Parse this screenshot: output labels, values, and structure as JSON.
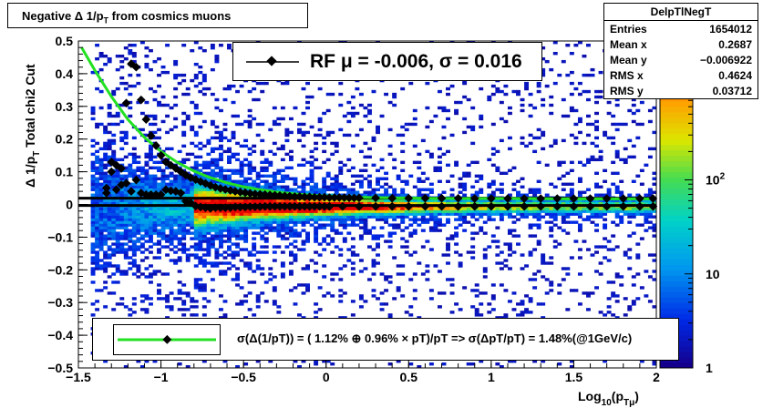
{
  "title": "Negative Δ 1/p_T from cosmics muons",
  "title_parts": {
    "main": "Negative Δ 1/p",
    "sub": "T",
    "rest": " from cosmics muons"
  },
  "stats": {
    "name": "DelpTlNegT",
    "rows": [
      {
        "key": "Entries",
        "value": "1654012"
      },
      {
        "key": "Mean x",
        "value": "0.2687"
      },
      {
        "key": "Mean y",
        "value": "−0.006922"
      },
      {
        "key": "RMS x",
        "value": "0.4624"
      },
      {
        "key": "RMS y",
        "value": "0.03712"
      }
    ]
  },
  "rf_label": "RF μ = -0.006, σ =   0.016",
  "fit_label": "σ(Δ(1/pT)) = ( 1.12% ⊕  0.96% × pT)/pT => σ(ΔpT/pT) =  1.48%(@1GeV/c)",
  "colors": {
    "fit_curve": "#22e022",
    "markers": "#000000",
    "frame": "#000000"
  },
  "chart_data": {
    "type": "heatmap",
    "xlabel": "Log10(pTμ)",
    "xlabel_parts": {
      "a": "Log",
      "sub1": "10",
      "b": "(p",
      "sub2": "Tμ",
      "c": ")"
    },
    "ylabel": "Δ 1/pT  Total chi2 Cut",
    "ylabel_parts": {
      "a": "Δ 1/p",
      "sub": "T",
      "b": "  Total chi2 Cut"
    },
    "xlim": [
      -1.5,
      2
    ],
    "ylim": [
      -0.5,
      0.5
    ],
    "x_ticks": [
      "−1.5",
      "−1",
      "−0.5",
      "0",
      "0.5",
      "1",
      "1.5",
      "2"
    ],
    "x_tick_values": [
      -1.5,
      -1,
      -0.5,
      0,
      0.5,
      1,
      1.5,
      2
    ],
    "y_ticks": [
      "0.5",
      "0.4",
      "0.3",
      "0.2",
      "0.1",
      "0",
      "−0.1",
      "−0.2",
      "−0.3",
      "−0.4",
      "−0.5"
    ],
    "y_tick_values": [
      0.5,
      0.4,
      0.3,
      0.2,
      0.1,
      0,
      -0.1,
      -0.2,
      -0.3,
      -0.4,
      -0.5
    ],
    "z_scale": "log",
    "z_range": [
      1,
      3000
    ],
    "z_ticks": [
      "1",
      "10",
      "10^2"
    ],
    "z_tick_values": [
      1,
      10,
      100
    ],
    "horizontal_lines_y": [
      0.019,
      -0.003
    ],
    "sigma_profile": {
      "x": [
        -1.33,
        -1.3,
        -1.27,
        -1.24,
        -1.21,
        -1.18,
        -1.15,
        -1.12,
        -1.09,
        -1.06,
        -1.03,
        -1.0,
        -0.97,
        -0.94,
        -0.91,
        -0.88,
        -0.85,
        -0.82,
        -0.79,
        -0.76,
        -0.73,
        -0.7,
        -0.67,
        -0.64,
        -0.61,
        -0.58,
        -0.55,
        -0.52,
        -0.49,
        -0.46,
        -0.43,
        -0.4,
        -0.37,
        -0.34,
        -0.31,
        -0.28,
        -0.25,
        -0.22,
        -0.19,
        -0.16,
        -0.13,
        -0.1,
        -0.07,
        -0.04,
        -0.01,
        0.02,
        0.05,
        0.08,
        0.11,
        0.14,
        0.17,
        0.2,
        0.3,
        0.4,
        0.5,
        0.6,
        0.7,
        0.8,
        0.9,
        1.0,
        1.1,
        1.2,
        1.3,
        1.4,
        1.5,
        1.6,
        1.7,
        1.8,
        1.9,
        1.98
      ],
      "y": [
        0.05,
        0.1,
        0.12,
        0.11,
        0.31,
        0.43,
        0.42,
        0.32,
        0.26,
        0.21,
        0.18,
        0.15,
        0.13,
        0.12,
        0.11,
        0.1,
        0.09,
        0.082,
        0.076,
        0.07,
        0.064,
        0.058,
        0.053,
        0.049,
        0.046,
        0.043,
        0.04,
        0.038,
        0.036,
        0.034,
        0.032,
        0.031,
        0.03,
        0.029,
        0.028,
        0.027,
        0.026,
        0.025,
        0.024,
        0.024,
        0.023,
        0.023,
        0.022,
        0.022,
        0.022,
        0.021,
        0.021,
        0.021,
        0.021,
        0.02,
        0.02,
        0.02,
        0.02,
        0.019,
        0.019,
        0.019,
        0.019,
        0.019,
        0.018,
        0.018,
        0.018,
        0.018,
        0.018,
        0.018,
        0.018,
        0.018,
        0.018,
        0.018,
        0.018,
        0.018
      ]
    },
    "mean_profile": {
      "x": [
        -1.33,
        -1.3,
        -1.27,
        -1.24,
        -1.21,
        -1.18,
        -1.15,
        -1.12,
        -1.09,
        -1.06,
        -1.03,
        -1.0,
        -0.97,
        -0.94,
        -0.91,
        -0.88,
        -0.85,
        -0.82,
        -0.79,
        -0.76,
        -0.73,
        -0.7,
        -0.67,
        -0.64,
        -0.61,
        -0.58,
        -0.55,
        -0.52,
        -0.49,
        -0.46,
        -0.43,
        -0.4,
        -0.37,
        -0.34,
        -0.31,
        -0.28,
        -0.25,
        -0.22,
        -0.19,
        -0.16,
        -0.13,
        -0.1,
        -0.07,
        -0.04,
        -0.01,
        0.02,
        0.1,
        0.2,
        0.3,
        0.4,
        0.5,
        0.6,
        0.7,
        0.8,
        0.9,
        1.0,
        1.1,
        1.2,
        1.3,
        1.4,
        1.5,
        1.6,
        1.7,
        1.8,
        1.9,
        1.98
      ],
      "y": [
        0.035,
        0.13,
        0.045,
        0.06,
        0.065,
        0.04,
        0.075,
        0.035,
        0.03,
        0.03,
        0.03,
        0.03,
        0.045,
        0.042,
        0.04,
        0.035,
        0.01,
        0.005,
        -0.005,
        -0.008,
        -0.01,
        -0.012,
        -0.01,
        -0.01,
        -0.01,
        -0.01,
        -0.008,
        -0.008,
        -0.008,
        -0.007,
        -0.007,
        -0.007,
        -0.006,
        -0.006,
        -0.006,
        -0.006,
        -0.006,
        -0.006,
        -0.006,
        -0.006,
        -0.006,
        -0.006,
        -0.006,
        -0.006,
        -0.006,
        -0.006,
        -0.006,
        -0.006,
        -0.006,
        -0.006,
        -0.006,
        -0.006,
        -0.006,
        -0.006,
        -0.006,
        -0.006,
        -0.006,
        -0.006,
        -0.006,
        -0.006,
        -0.006,
        -0.006,
        -0.006,
        -0.006,
        -0.006,
        -0.006
      ]
    },
    "fit_curve": {
      "x": [
        -1.48,
        -1.4,
        -1.3,
        -1.2,
        -1.1,
        -1.0,
        -0.9,
        -0.8,
        -0.7,
        -0.6,
        -0.5,
        -0.4,
        -0.3,
        -0.2,
        -0.1,
        0.0,
        0.2,
        0.4,
        0.6,
        0.8,
        1.0,
        1.2,
        1.4,
        1.6,
        1.8,
        2.0
      ],
      "y": [
        0.48,
        0.41,
        0.33,
        0.26,
        0.205,
        0.162,
        0.128,
        0.102,
        0.082,
        0.066,
        0.054,
        0.045,
        0.038,
        0.033,
        0.029,
        0.026,
        0.022,
        0.02,
        0.019,
        0.018,
        0.018,
        0.018,
        0.017,
        0.017,
        0.017,
        0.017
      ]
    }
  }
}
